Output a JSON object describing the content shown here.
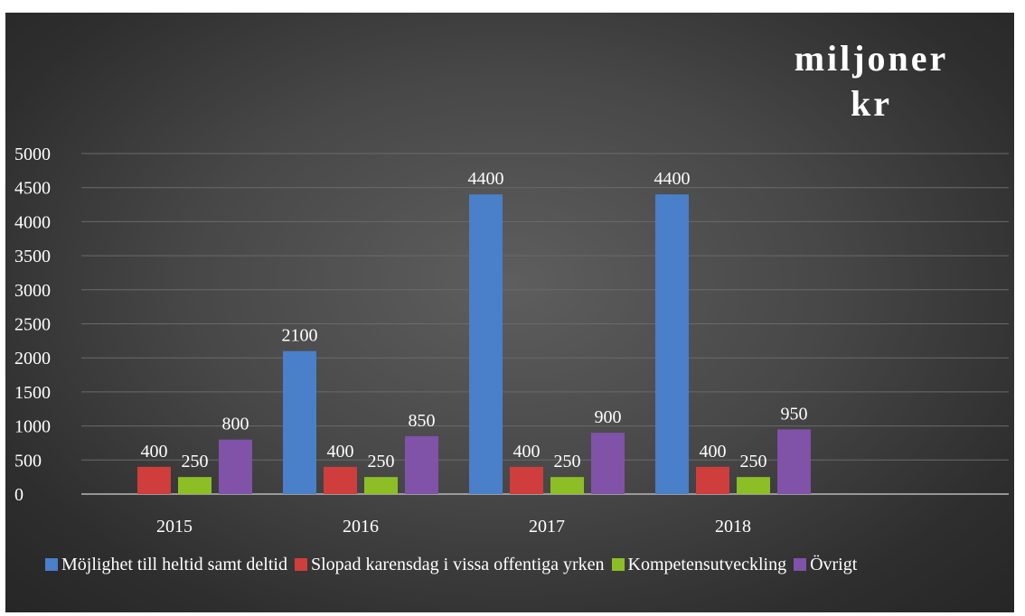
{
  "chart_data": {
    "type": "bar",
    "title": "miljoner kr",
    "categories": [
      "2015",
      "2016",
      "2017",
      "2018"
    ],
    "series": [
      {
        "name": "Möjlighet till heltid samt deltid",
        "color": "#4a7fc9",
        "values": [
          0,
          2100,
          4400,
          4400
        ],
        "labels": [
          "",
          "2100",
          "4400",
          "4400"
        ]
      },
      {
        "name": "Slopad karensdag i vissa offentiga yrken",
        "color": "#cf3d3d",
        "values": [
          400,
          400,
          400,
          400
        ],
        "labels": [
          "400",
          "400",
          "400",
          "400"
        ]
      },
      {
        "name": "Kompetensutveckling",
        "color": "#8cbf26",
        "values": [
          250,
          250,
          250,
          250
        ],
        "labels": [
          "250",
          "250",
          "250",
          "250"
        ]
      },
      {
        "name": "Övrigt",
        "color": "#8052a8",
        "values": [
          800,
          850,
          900,
          950
        ],
        "labels": [
          "800",
          "850",
          "900",
          "950"
        ]
      }
    ],
    "ylim": [
      0,
      5000
    ],
    "yticks": [
      "0",
      "500",
      "1000",
      "1500",
      "2000",
      "2500",
      "3000",
      "3500",
      "4000",
      "4500",
      "5000"
    ],
    "grid": true,
    "legend": "bottom"
  }
}
